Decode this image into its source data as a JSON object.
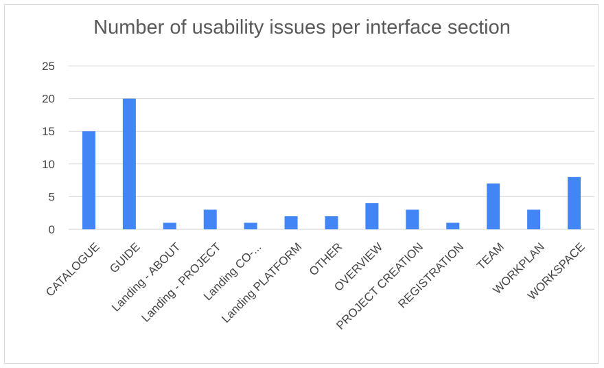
{
  "chart_data": {
    "type": "bar",
    "title": "Number of usability issues per interface section",
    "xlabel": "",
    "ylabel": "",
    "categories": [
      "CATALOGUE",
      "GUIDE",
      "Landing - ABOUT",
      "Landing - PROJECT",
      "Landing CO-...",
      "Landing PLATFORM",
      "OTHER",
      "OVERVIEW",
      "PROJECT CREATION",
      "REGISTRATION",
      "TEAM",
      "WORKPLAN",
      "WORKSPACE"
    ],
    "values": [
      15,
      20,
      1,
      3,
      1,
      2,
      2,
      4,
      3,
      1,
      7,
      3,
      8
    ],
    "ylim": [
      0,
      25
    ],
    "yticks": [
      0,
      5,
      10,
      15,
      20,
      25
    ],
    "grid": true,
    "legend": "none",
    "colors": {
      "bar": "#4285f4",
      "grid": "#d9d9d9",
      "text": "#444444",
      "title": "#595959"
    }
  }
}
